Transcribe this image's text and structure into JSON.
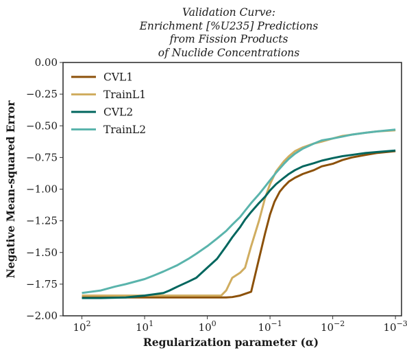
{
  "chart_data": {
    "type": "line",
    "title_lines": [
      "Validation Curve:",
      "Enrichment [%U235] Predictions",
      "from Fission Products",
      "of Nuclide Concentrations"
    ],
    "xlabel": "Regularization parameter (α)",
    "ylabel": "Negative Mean-squared Error",
    "x_scale": "log",
    "x_inverted": true,
    "xlim": [
      200,
      0.0008
    ],
    "ylim": [
      -2.0,
      0.0
    ],
    "x_ticks": [
      {
        "value": 100,
        "exp": "2"
      },
      {
        "value": 10,
        "exp": "1"
      },
      {
        "value": 1,
        "exp": "0"
      },
      {
        "value": 0.1,
        "exp": "−1"
      },
      {
        "value": 0.01,
        "exp": "−2"
      },
      {
        "value": 0.001,
        "exp": "−3"
      }
    ],
    "x_tick_base": "10",
    "y_ticks": [
      0.0,
      -0.25,
      -0.5,
      -0.75,
      -1.0,
      -1.25,
      -1.5,
      -1.75,
      -2.0
    ],
    "y_tick_labels": [
      "0.00",
      "−0.25",
      "−0.50",
      "−0.75",
      "−1.00",
      "−1.25",
      "−1.50",
      "−1.75",
      "−2.00"
    ],
    "grid": false,
    "legend_position": "top-left",
    "series": [
      {
        "name": "CVL1",
        "color": "#8c510a",
        "points": [
          [
            100,
            -1.855
          ],
          [
            50,
            -1.855
          ],
          [
            20,
            -1.855
          ],
          [
            10,
            -1.855
          ],
          [
            5,
            -1.855
          ],
          [
            2,
            -1.855
          ],
          [
            1,
            -1.855
          ],
          [
            0.5,
            -1.855
          ],
          [
            0.4,
            -1.852
          ],
          [
            0.3,
            -1.84
          ],
          [
            0.2,
            -1.81
          ],
          [
            0.15,
            -1.55
          ],
          [
            0.12,
            -1.35
          ],
          [
            0.1,
            -1.2
          ],
          [
            0.085,
            -1.1
          ],
          [
            0.07,
            -1.02
          ],
          [
            0.06,
            -0.98
          ],
          [
            0.05,
            -0.94
          ],
          [
            0.04,
            -0.91
          ],
          [
            0.03,
            -0.88
          ],
          [
            0.02,
            -0.85
          ],
          [
            0.015,
            -0.82
          ],
          [
            0.01,
            -0.8
          ],
          [
            0.007,
            -0.77
          ],
          [
            0.005,
            -0.75
          ],
          [
            0.003,
            -0.73
          ],
          [
            0.002,
            -0.715
          ],
          [
            0.001,
            -0.7
          ]
        ]
      },
      {
        "name": "TrainL1",
        "color": "#d0ad60",
        "points": [
          [
            100,
            -1.84
          ],
          [
            50,
            -1.84
          ],
          [
            20,
            -1.84
          ],
          [
            10,
            -1.84
          ],
          [
            5,
            -1.84
          ],
          [
            2,
            -1.84
          ],
          [
            1,
            -1.84
          ],
          [
            0.6,
            -1.84
          ],
          [
            0.5,
            -1.8
          ],
          [
            0.4,
            -1.7
          ],
          [
            0.3,
            -1.66
          ],
          [
            0.25,
            -1.62
          ],
          [
            0.2,
            -1.45
          ],
          [
            0.15,
            -1.25
          ],
          [
            0.12,
            -1.07
          ],
          [
            0.1,
            -0.96
          ],
          [
            0.08,
            -0.86
          ],
          [
            0.06,
            -0.78
          ],
          [
            0.05,
            -0.74
          ],
          [
            0.04,
            -0.7
          ],
          [
            0.03,
            -0.67
          ],
          [
            0.02,
            -0.64
          ],
          [
            0.015,
            -0.625
          ],
          [
            0.01,
            -0.6
          ],
          [
            0.007,
            -0.58
          ],
          [
            0.005,
            -0.57
          ],
          [
            0.003,
            -0.555
          ],
          [
            0.002,
            -0.545
          ],
          [
            0.001,
            -0.535
          ]
        ]
      },
      {
        "name": "CVL2",
        "color": "#01665e",
        "points": [
          [
            100,
            -1.86
          ],
          [
            50,
            -1.86
          ],
          [
            20,
            -1.855
          ],
          [
            10,
            -1.84
          ],
          [
            7,
            -1.83
          ],
          [
            5,
            -1.82
          ],
          [
            4,
            -1.8
          ],
          [
            3,
            -1.77
          ],
          [
            2,
            -1.73
          ],
          [
            1.5,
            -1.7
          ],
          [
            1,
            -1.62
          ],
          [
            0.7,
            -1.55
          ],
          [
            0.5,
            -1.45
          ],
          [
            0.4,
            -1.38
          ],
          [
            0.3,
            -1.3
          ],
          [
            0.25,
            -1.24
          ],
          [
            0.2,
            -1.18
          ],
          [
            0.15,
            -1.11
          ],
          [
            0.12,
            -1.06
          ],
          [
            0.1,
            -1.01
          ],
          [
            0.08,
            -0.96
          ],
          [
            0.06,
            -0.91
          ],
          [
            0.05,
            -0.88
          ],
          [
            0.04,
            -0.85
          ],
          [
            0.03,
            -0.82
          ],
          [
            0.02,
            -0.795
          ],
          [
            0.015,
            -0.775
          ],
          [
            0.01,
            -0.755
          ],
          [
            0.007,
            -0.74
          ],
          [
            0.005,
            -0.73
          ],
          [
            0.003,
            -0.715
          ],
          [
            0.002,
            -0.707
          ],
          [
            0.001,
            -0.695
          ]
        ]
      },
      {
        "name": "TrainL2",
        "color": "#5ab4ac",
        "points": [
          [
            100,
            -1.82
          ],
          [
            50,
            -1.8
          ],
          [
            30,
            -1.77
          ],
          [
            20,
            -1.75
          ],
          [
            10,
            -1.71
          ],
          [
            7,
            -1.68
          ],
          [
            5,
            -1.65
          ],
          [
            3,
            -1.6
          ],
          [
            2,
            -1.55
          ],
          [
            1.5,
            -1.51
          ],
          [
            1,
            -1.45
          ],
          [
            0.7,
            -1.39
          ],
          [
            0.5,
            -1.33
          ],
          [
            0.4,
            -1.28
          ],
          [
            0.3,
            -1.22
          ],
          [
            0.25,
            -1.17
          ],
          [
            0.2,
            -1.11
          ],
          [
            0.15,
            -1.04
          ],
          [
            0.12,
            -0.98
          ],
          [
            0.1,
            -0.93
          ],
          [
            0.08,
            -0.87
          ],
          [
            0.06,
            -0.8
          ],
          [
            0.05,
            -0.76
          ],
          [
            0.04,
            -0.72
          ],
          [
            0.03,
            -0.68
          ],
          [
            0.02,
            -0.64
          ],
          [
            0.015,
            -0.615
          ],
          [
            0.01,
            -0.6
          ],
          [
            0.007,
            -0.585
          ],
          [
            0.005,
            -0.57
          ],
          [
            0.003,
            -0.555
          ],
          [
            0.002,
            -0.545
          ],
          [
            0.001,
            -0.53
          ]
        ]
      }
    ]
  }
}
